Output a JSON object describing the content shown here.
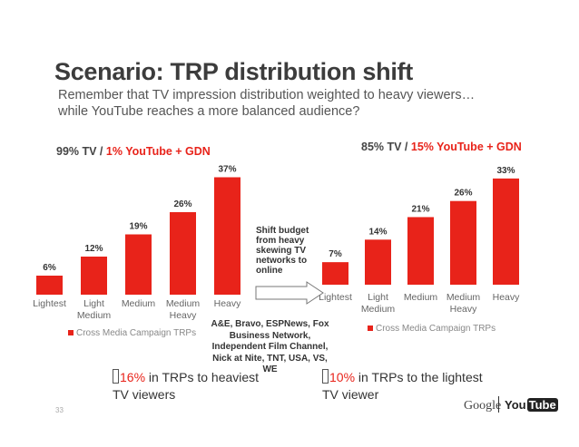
{
  "slide": {
    "title": "Scenario: TRP distribution shift",
    "subtitle_line1": "Remember that TV impression distribution weighted to heavy viewers…",
    "subtitle_line2": "while YouTube reaches a more balanced audience?",
    "shift_note": "Shift budget from heavy skewing TV networks to online",
    "networks_note": "A&E, Bravo, ESPNews, Fox Business Network, Independent Film Channel, Nick at Nite, TNT, USA, VS, WE",
    "callout_left": {
      "pct": "16%",
      "text": " in TRPs   to heaviest TV viewers"
    },
    "callout_right": {
      "pct": "10%",
      "text": " in TRPs to the lightest TV viewer"
    },
    "page_number": "33",
    "logos": {
      "google": "Google",
      "you": "You",
      "tube": "Tube"
    }
  },
  "colors": {
    "bar": "#e8231a",
    "brand_red": "#e8231a"
  },
  "chart_data": [
    {
      "type": "bar",
      "title_tv": "99% TV / ",
      "title_yt": "1% YouTube + GDN",
      "categories": [
        "Lightest",
        "Light Medium",
        "Medium",
        "Medium Heavy",
        "Heavy"
      ],
      "values": [
        6,
        12,
        19,
        26,
        37
      ],
      "labels": [
        "6%",
        "12%",
        "19%",
        "26%",
        "37%"
      ],
      "legend": "Cross Media Campaign TRPs",
      "ylim": [
        0,
        40
      ]
    },
    {
      "type": "bar",
      "title_tv": "85% TV / ",
      "title_yt": "15% YouTube + GDN",
      "categories": [
        "Lightest",
        "Light Medium",
        "Medium",
        "Medium Heavy",
        "Heavy"
      ],
      "values": [
        7,
        14,
        21,
        26,
        33
      ],
      "labels": [
        "7%",
        "14%",
        "21%",
        "26%",
        "33%"
      ],
      "legend": "Cross Media Campaign TRPs",
      "ylim": [
        0,
        40
      ]
    }
  ]
}
